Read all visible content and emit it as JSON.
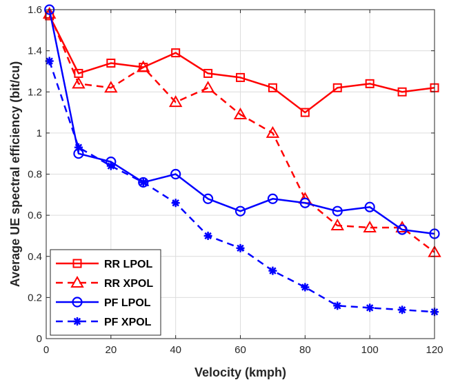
{
  "chart_data": {
    "type": "line",
    "title": "",
    "xlabel": "Velocity (kmph)",
    "ylabel": "Average UE spectral efficiency (bit/cu)",
    "xlim": [
      0,
      120
    ],
    "ylim": [
      0,
      1.6
    ],
    "xticks": [
      0,
      20,
      40,
      60,
      80,
      100,
      120
    ],
    "yticks": [
      0,
      0.2,
      0.4,
      0.6,
      0.8,
      1,
      1.2,
      1.4,
      1.6
    ],
    "xtick_labels": [
      "0",
      "20",
      "40",
      "60",
      "80",
      "100",
      "120"
    ],
    "ytick_labels": [
      "0",
      "0.2",
      "0.4",
      "0.6",
      "0.8",
      "1",
      "1.2",
      "1.4",
      "1.6"
    ],
    "grid": true,
    "legend_position": "bottom-left",
    "x": [
      1,
      10,
      20,
      30,
      40,
      50,
      60,
      70,
      80,
      90,
      100,
      110,
      120
    ],
    "series": [
      {
        "name": "RR LPOL",
        "color": "#ff0000",
        "line_style": "solid",
        "marker": "square",
        "values": [
          1.57,
          1.29,
          1.34,
          1.32,
          1.39,
          1.29,
          1.27,
          1.22,
          1.1,
          1.22,
          1.24,
          1.2,
          1.22
        ]
      },
      {
        "name": "RR XPOL",
        "color": "#ff0000",
        "line_style": "dashed",
        "marker": "triangle",
        "values": [
          1.58,
          1.24,
          1.22,
          1.32,
          1.15,
          1.22,
          1.09,
          1.0,
          0.68,
          0.55,
          0.54,
          0.54,
          0.42
        ]
      },
      {
        "name": "PF LPOL",
        "color": "#0000ff",
        "line_style": "solid",
        "marker": "circle",
        "values": [
          1.6,
          0.9,
          0.86,
          0.76,
          0.8,
          0.68,
          0.62,
          0.68,
          0.66,
          0.62,
          0.64,
          0.53,
          0.51
        ]
      },
      {
        "name": "PF XPOL",
        "color": "#0000ff",
        "line_style": "dashed",
        "marker": "asterisk",
        "values": [
          1.35,
          0.93,
          0.84,
          0.76,
          0.66,
          0.5,
          0.44,
          0.33,
          0.25,
          0.16,
          0.15,
          0.14,
          0.13
        ]
      }
    ]
  }
}
